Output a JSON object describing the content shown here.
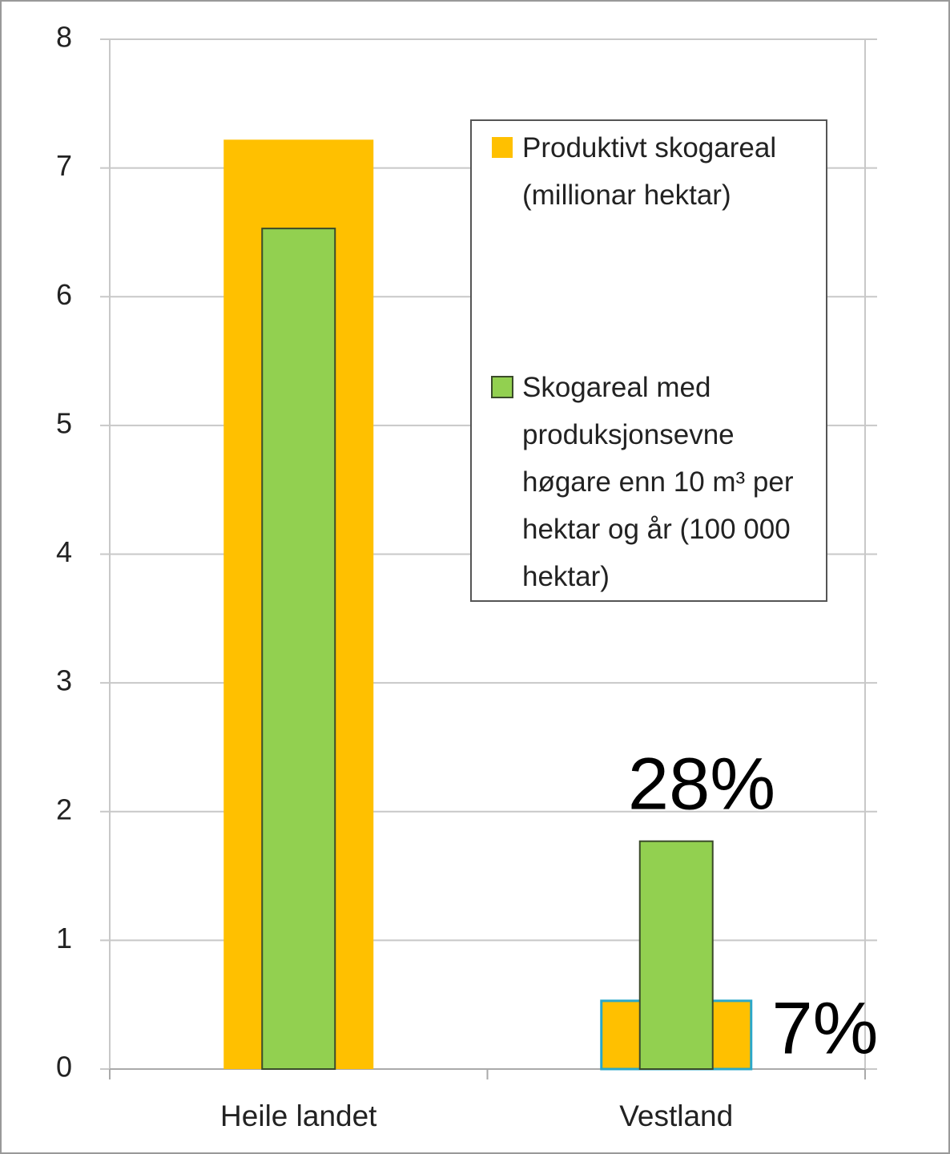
{
  "chart_data": {
    "type": "bar",
    "categories": [
      "Heile landet",
      "Vestland"
    ],
    "series": [
      {
        "name": "Produktivt skogareal (millionar hektar)",
        "color": "#ffc000",
        "values": [
          7.22,
          0.53
        ]
      },
      {
        "name": "Skogareal med produksjonsevne høgare enn 10 m³ per hektar og år (100 000 hektar)",
        "color": "#92d050",
        "values": [
          6.53,
          1.77
        ]
      }
    ],
    "annotations": [
      "28%",
      "7%"
    ],
    "ylim": [
      0,
      8
    ],
    "yticks": [
      0,
      1,
      2,
      3,
      4,
      5,
      6,
      7,
      8
    ],
    "grid": true,
    "legend": "upper right"
  }
}
